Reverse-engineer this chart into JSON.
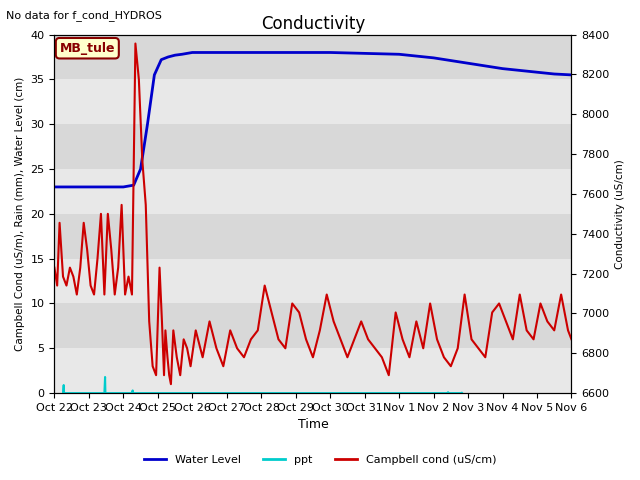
{
  "title": "Conductivity",
  "top_left_text": "No data for f_cond_HYDROS",
  "ylabel_left": "Campbell Cond (uS/m), Rain (mm), Water Level (cm)",
  "ylabel_right": "Conductivity (uS/cm)",
  "xlabel": "Time",
  "ylim_left": [
    0,
    40
  ],
  "ylim_right": [
    6600,
    8400
  ],
  "x_tick_labels": [
    "Oct 22",
    "Oct 23",
    "Oct 24",
    "Oct 25",
    "Oct 26",
    "Oct 27",
    "Oct 28",
    "Oct 29",
    "Oct 30",
    "Oct 31",
    "Nov 1",
    "Nov 2",
    "Nov 3",
    "Nov 4",
    "Nov 5",
    "Nov 6"
  ],
  "yticks_left": [
    0,
    5,
    10,
    15,
    20,
    25,
    30,
    35,
    40
  ],
  "yticks_right": [
    6600,
    6800,
    7000,
    7200,
    7400,
    7600,
    7800,
    8000,
    8200,
    8400
  ],
  "band_colors": [
    "#e8e8e8",
    "#d8d8d8"
  ],
  "band_edges": [
    0,
    5,
    10,
    15,
    20,
    25,
    30,
    35,
    40
  ],
  "box_label": "MB_tule",
  "box_color": "#ffffcc",
  "box_border_color": "#880000",
  "box_text_color": "#880000",
  "water_level_color": "#0000cc",
  "ppt_color": "#00cccc",
  "campbell_color": "#cc0000",
  "water_level_x": [
    0,
    0.5,
    1.0,
    1.5,
    2.0,
    2.3,
    2.5,
    2.7,
    2.9,
    3.1,
    3.3,
    3.5,
    3.7,
    4.0,
    5.0,
    6.0,
    7.0,
    8.0,
    9.0,
    10.0,
    10.5,
    11.0,
    11.5,
    12.0,
    12.5,
    13.0,
    13.5,
    14.0,
    14.5,
    15.0
  ],
  "water_level_y": [
    23.0,
    23.0,
    23.0,
    23.0,
    23.0,
    23.2,
    25.0,
    30.0,
    35.5,
    37.2,
    37.5,
    37.7,
    37.8,
    38.0,
    38.0,
    38.0,
    38.0,
    38.0,
    37.9,
    37.8,
    37.6,
    37.4,
    37.1,
    36.8,
    36.5,
    36.2,
    36.0,
    35.8,
    35.6,
    35.5
  ],
  "ppt_x": [
    0.25,
    0.27,
    0.28,
    1.45,
    1.47,
    1.48,
    2.25,
    2.27,
    2.28,
    11.4,
    11.42,
    11.43,
    11.8,
    11.82,
    11.83
  ],
  "ppt_y": [
    0,
    0.9,
    0,
    0,
    1.8,
    0,
    0,
    0.3,
    0,
    0,
    0.1,
    0,
    0,
    0.05,
    0
  ],
  "campbell_x": [
    0.0,
    0.08,
    0.15,
    0.25,
    0.35,
    0.45,
    0.55,
    0.65,
    0.75,
    0.85,
    0.95,
    1.05,
    1.15,
    1.25,
    1.35,
    1.45,
    1.55,
    1.65,
    1.75,
    1.85,
    1.95,
    2.05,
    2.15,
    2.25,
    2.35,
    2.45,
    2.55,
    2.65,
    2.75,
    2.85,
    2.95,
    3.05,
    3.12,
    3.18,
    3.22,
    3.28,
    3.33,
    3.38,
    3.45,
    3.55,
    3.65,
    3.75,
    3.85,
    3.95,
    4.1,
    4.3,
    4.5,
    4.7,
    4.9,
    5.1,
    5.3,
    5.5,
    5.7,
    5.9,
    6.1,
    6.3,
    6.5,
    6.7,
    6.9,
    7.1,
    7.3,
    7.5,
    7.7,
    7.9,
    8.1,
    8.3,
    8.5,
    8.7,
    8.9,
    9.1,
    9.3,
    9.5,
    9.7,
    9.9,
    10.1,
    10.3,
    10.5,
    10.7,
    10.9,
    11.1,
    11.3,
    11.5,
    11.7,
    11.9,
    12.1,
    12.3,
    12.5,
    12.7,
    12.9,
    13.1,
    13.3,
    13.5,
    13.7,
    13.9,
    14.1,
    14.3,
    14.5,
    14.7,
    14.9,
    15.0
  ],
  "campbell_y": [
    14,
    12,
    19,
    13,
    12,
    14,
    13,
    11,
    14,
    19,
    16,
    12,
    11,
    15,
    20,
    11,
    20,
    16,
    11,
    14,
    21,
    11,
    13,
    11,
    39,
    35,
    26,
    21,
    8,
    3,
    2,
    14,
    8,
    2,
    7,
    4,
    2,
    1,
    7,
    4,
    2,
    6,
    5,
    3,
    7,
    4,
    8,
    5,
    3,
    7,
    5,
    4,
    6,
    7,
    12,
    9,
    6,
    5,
    10,
    9,
    6,
    4,
    7,
    11,
    8,
    6,
    4,
    6,
    8,
    6,
    5,
    4,
    2,
    9,
    6,
    4,
    8,
    5,
    10,
    6,
    4,
    3,
    5,
    11,
    6,
    5,
    4,
    9,
    10,
    8,
    6,
    11,
    7,
    6,
    10,
    8,
    7,
    11,
    7,
    6
  ]
}
